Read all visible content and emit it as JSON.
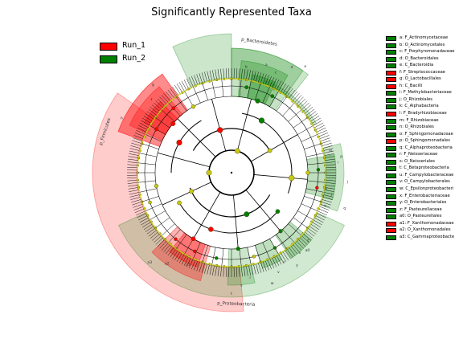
{
  "title": "Significantly Represented Taxa",
  "colors": {
    "run1": "#ff0000",
    "run2": "#008000",
    "node": "#c8c813",
    "edge": "#000000"
  },
  "legend_runs": [
    {
      "label": "Run_1",
      "color": "#ff0000"
    },
    {
      "label": "Run_2",
      "color": "#008000"
    }
  ],
  "taxa_legend": [
    {
      "label": "a: F_Actinomycetaceae",
      "color": "#008000"
    },
    {
      "label": "b: O_Actinomycetales",
      "color": "#008000"
    },
    {
      "label": "c: F_Porphyromonadaceae",
      "color": "#008000"
    },
    {
      "label": "d: O_Bacteroidales",
      "color": "#008000"
    },
    {
      "label": "e: C_Bacteroidia",
      "color": "#008000"
    },
    {
      "label": "f: F_Streptococcaceae",
      "color": "#ff0000"
    },
    {
      "label": "g: O_Lactobacillales",
      "color": "#ff0000"
    },
    {
      "label": "h: C_Bacilli",
      "color": "#ff0000"
    },
    {
      "label": "i: F_Methylobacteriaceae",
      "color": "#008000"
    },
    {
      "label": "j: O_Rhizobiales",
      "color": "#008000"
    },
    {
      "label": "k: C_Alphabacteria",
      "color": "#008000"
    },
    {
      "label": "l: F_Bradyrhizobiaceae",
      "color": "#ff0000"
    },
    {
      "label": "m: F_Rhizobiaceae",
      "color": "#008000"
    },
    {
      "label": "n: O_Rhizobiales",
      "color": "#008000"
    },
    {
      "label": "o: F_Sphingomonadaceae",
      "color": "#008000"
    },
    {
      "label": "p: O_Sphingomonadales",
      "color": "#ff0000"
    },
    {
      "label": "q: C_Alphaproteobacteria",
      "color": "#008000"
    },
    {
      "label": "r: F_Neisseriaceae",
      "color": "#008000"
    },
    {
      "label": "s: O_Neisseriales",
      "color": "#008000"
    },
    {
      "label": "t: C_Betaproteobacteria",
      "color": "#008000"
    },
    {
      "label": "u: F_Campylobacteraceae",
      "color": "#008000"
    },
    {
      "label": "v: O_Campylobacterales",
      "color": "#008000"
    },
    {
      "label": "w: C_Epsilonproteobacteri",
      "color": "#008000"
    },
    {
      "label": "x: F_Enterobacteriaceae",
      "color": "#008000"
    },
    {
      "label": "y: O_Enterobacteriales",
      "color": "#008000"
    },
    {
      "label": "z: F_Pasteurellaceae",
      "color": "#008000"
    },
    {
      "label": "a0: O_Pasteurellales",
      "color": "#008000"
    },
    {
      "label": "a1: F_Xanthomonadaceae",
      "color": "#ff0000"
    },
    {
      "label": "a2: O_Xanthomonadales",
      "color": "#ff0000"
    },
    {
      "label": "a3: C_Gammaproteobacte",
      "color": "#008000"
    }
  ],
  "clade_labels": {
    "bacteroidetes": "p_Bacteroidetes",
    "firmicutes": "p_Firmicutes",
    "proteobacteria": "p_Proteobacteria"
  },
  "sector_letters": [
    "a",
    "b",
    "c",
    "d",
    "e",
    "f",
    "g",
    "h",
    "i",
    "j",
    "k",
    "l",
    "m",
    "n",
    "o",
    "p",
    "q",
    "r",
    "s",
    "t",
    "u",
    "v",
    "w",
    "x",
    "y",
    "z",
    "a0",
    "a1",
    "a2",
    "a3"
  ]
}
